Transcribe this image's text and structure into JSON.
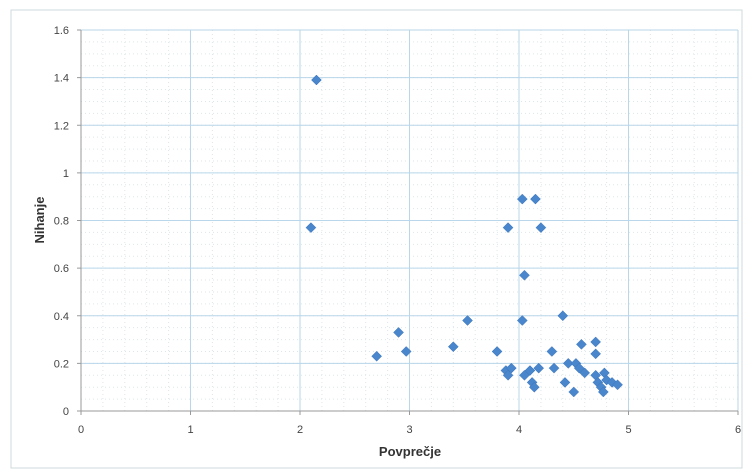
{
  "chart_data": {
    "type": "scatter",
    "title": "",
    "xlabel": "Povprečje",
    "ylabel": "Nihanje",
    "xlim": [
      0,
      6
    ],
    "ylim": [
      0,
      1.6
    ],
    "x_ticks": [
      "0",
      "1",
      "2",
      "3",
      "4",
      "5",
      "6"
    ],
    "y_ticks": [
      "0",
      "0.2",
      "0.4",
      "0.6",
      "0.8",
      "1",
      "1.2",
      "1.4",
      "1.6"
    ],
    "grid": true,
    "legend": "none",
    "marker": "diamond",
    "colors": {
      "marker": "#4a86cc",
      "grid": "#b9d6ea",
      "axis": "#9a9a9a"
    },
    "series": [
      {
        "points": [
          [
            2.15,
            1.39
          ],
          [
            2.1,
            0.77
          ],
          [
            2.7,
            0.23
          ],
          [
            2.9,
            0.33
          ],
          [
            2.97,
            0.25
          ],
          [
            3.4,
            0.27
          ],
          [
            3.53,
            0.38
          ],
          [
            3.8,
            0.25
          ],
          [
            3.88,
            0.17
          ],
          [
            3.9,
            0.15
          ],
          [
            3.93,
            0.18
          ],
          [
            3.9,
            0.77
          ],
          [
            4.03,
            0.89
          ],
          [
            4.15,
            0.89
          ],
          [
            4.2,
            0.77
          ],
          [
            4.05,
            0.57
          ],
          [
            4.03,
            0.38
          ],
          [
            4.4,
            0.4
          ],
          [
            4.05,
            0.15
          ],
          [
            4.1,
            0.17
          ],
          [
            4.12,
            0.12
          ],
          [
            4.14,
            0.1
          ],
          [
            4.18,
            0.18
          ],
          [
            4.3,
            0.25
          ],
          [
            4.32,
            0.18
          ],
          [
            4.42,
            0.12
          ],
          [
            4.45,
            0.2
          ],
          [
            4.5,
            0.08
          ],
          [
            4.52,
            0.2
          ],
          [
            4.55,
            0.18
          ],
          [
            4.57,
            0.28
          ],
          [
            4.6,
            0.16
          ],
          [
            4.7,
            0.29
          ],
          [
            4.7,
            0.24
          ],
          [
            4.7,
            0.15
          ],
          [
            4.72,
            0.12
          ],
          [
            4.75,
            0.1
          ],
          [
            4.77,
            0.08
          ],
          [
            4.78,
            0.16
          ],
          [
            4.8,
            0.13
          ],
          [
            4.85,
            0.12
          ],
          [
            4.9,
            0.11
          ]
        ]
      }
    ]
  }
}
